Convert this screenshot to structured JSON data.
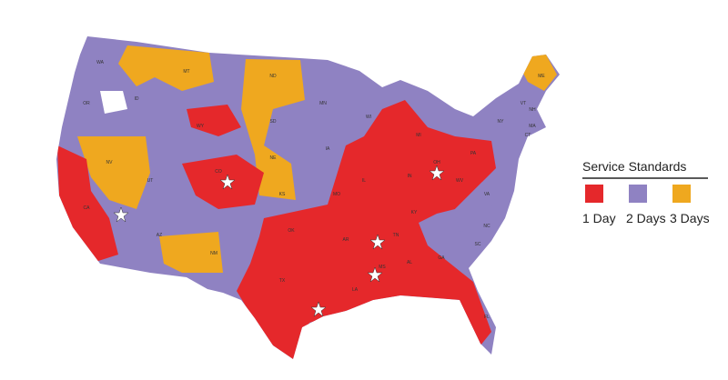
{
  "legend": {
    "title": "Service Standards",
    "items": [
      {
        "label": "1 Day",
        "color": "#e5282b"
      },
      {
        "label": "2 Days",
        "color": "#8f82c2"
      },
      {
        "label": "3 Days",
        "color": "#efa81f"
      }
    ]
  },
  "states": [
    "WA",
    "OR",
    "ID",
    "MT",
    "ND",
    "MN",
    "WI",
    "MI",
    "NY",
    "ME",
    "VT",
    "NH",
    "MA",
    "CT",
    "CA",
    "NV",
    "UT",
    "WY",
    "SD",
    "NE",
    "CO",
    "KS",
    "IA",
    "IL",
    "IN",
    "OH",
    "PA",
    "MO",
    "KY",
    "WV",
    "VA",
    "NC",
    "TN",
    "SC",
    "AR",
    "OK",
    "TX",
    "LA",
    "MS",
    "AL",
    "GA",
    "FL",
    "NM",
    "AZ"
  ]
}
